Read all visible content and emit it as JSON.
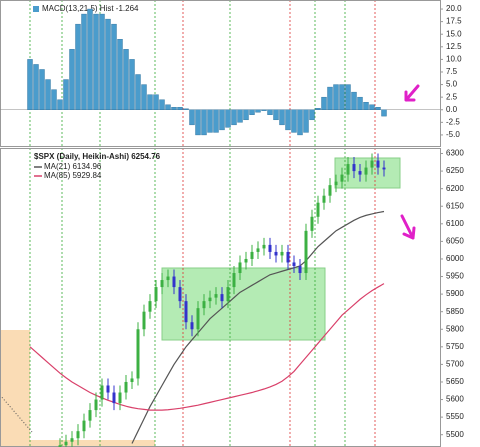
{
  "chart_data": [
    {
      "type": "bar",
      "title": "MACD(13,21,5) Hist -1.264",
      "color": "#4a9ccc",
      "values": [
        10,
        9,
        8,
        6,
        4,
        2,
        6,
        12,
        17,
        19,
        20,
        19,
        19,
        18,
        17,
        14,
        12,
        10,
        7,
        5,
        3,
        3,
        2,
        1,
        0.5,
        0.5,
        0.2,
        -3,
        -5,
        -5,
        -4.5,
        -4.5,
        -4,
        -3.5,
        -3,
        -2.5,
        -2,
        -1,
        -0.5,
        -0.2,
        -1,
        -2,
        -3,
        -4,
        -4.5,
        -5,
        -4.5,
        -2,
        0.3,
        2.5,
        4.5,
        5,
        5,
        5,
        3.5,
        2.5,
        1.5,
        1,
        0.5,
        -1.264
      ],
      "ylim": [
        -7,
        21
      ],
      "yticks": [
        {
          "value": 20,
          "label": "20.0"
        },
        {
          "value": 17.5,
          "label": "17.5"
        },
        {
          "value": 15,
          "label": "15.0"
        },
        {
          "value": 12.5,
          "label": "12.5"
        },
        {
          "value": 10,
          "label": "10.0"
        },
        {
          "value": 7.5,
          "label": "7.5"
        },
        {
          "value": 5,
          "label": "5.0"
        },
        {
          "value": 2.5,
          "label": "2.5"
        },
        {
          "value": 0,
          "label": "0.0"
        },
        {
          "value": -2.5,
          "label": "-2.5"
        },
        {
          "value": -5,
          "label": "-5.0"
        }
      ]
    },
    {
      "type": "candlestick",
      "title": "$SPX (Daily, Heikin-Ashi) 6254.76",
      "up_color": "#3cb043",
      "down_color": "#3333cc",
      "open": [
        null,
        null,
        null,
        null,
        null,
        5455,
        5470,
        5480,
        5490,
        5510,
        5540,
        5570,
        5600,
        5640,
        5620,
        5590,
        5620,
        5650,
        5660,
        5800,
        5850,
        5880,
        5920,
        5940,
        5950,
        5920,
        5880,
        5820,
        5800,
        5860,
        5880,
        5890,
        5900,
        5880,
        5920,
        5960,
        5990,
        6000,
        6020,
        6030,
        6040,
        6020,
        6010,
        6020,
        5990,
        5980,
        5960,
        6080,
        6120,
        6160,
        6180,
        6210,
        6220,
        6240,
        6270,
        6250,
        6240,
        6260,
        6280,
        6260
      ],
      "high": [
        null,
        null,
        null,
        null,
        null,
        5490,
        5500,
        5510,
        5530,
        5560,
        5590,
        5620,
        5660,
        5660,
        5640,
        5640,
        5670,
        5680,
        5820,
        5870,
        5900,
        5940,
        5960,
        5970,
        5970,
        5940,
        5900,
        5840,
        5880,
        5900,
        5910,
        5920,
        5920,
        5940,
        5980,
        6010,
        6020,
        6040,
        6050,
        6060,
        6060,
        6040,
        6040,
        6040,
        6010,
        6000,
        6100,
        6140,
        6180,
        6200,
        6230,
        6240,
        6260,
        6290,
        6290,
        6270,
        6280,
        6300,
        6300,
        6280
      ],
      "low": [
        null,
        null,
        null,
        null,
        null,
        5435,
        5450,
        5460,
        5470,
        5490,
        5520,
        5550,
        5580,
        5600,
        5570,
        5570,
        5600,
        5630,
        5640,
        5780,
        5830,
        5860,
        5900,
        5920,
        5900,
        5860,
        5800,
        5780,
        5780,
        5840,
        5860,
        5870,
        5860,
        5860,
        5900,
        5940,
        5970,
        5980,
        6000,
        6010,
        6000,
        5990,
        5990,
        5970,
        5960,
        5940,
        5940,
        6060,
        6100,
        6140,
        6160,
        6190,
        6200,
        6220,
        6230,
        6220,
        6220,
        6240,
        6240,
        6234.76
      ],
      "close": [
        null,
        null,
        null,
        null,
        null,
        5470,
        5480,
        5490,
        5510,
        5540,
        5570,
        5600,
        5640,
        5620,
        5590,
        5620,
        5650,
        5660,
        5800,
        5850,
        5880,
        5920,
        5940,
        5950,
        5920,
        5880,
        5820,
        5800,
        5860,
        5880,
        5890,
        5900,
        5880,
        5920,
        5960,
        5990,
        6000,
        6020,
        6030,
        6040,
        6020,
        6010,
        6020,
        5990,
        5980,
        5960,
        6080,
        6120,
        6160,
        6180,
        6210,
        6220,
        6240,
        6270,
        6250,
        6240,
        6260,
        6280,
        6260,
        6254.76
      ],
      "series": [
        {
          "name": "MA(21) 6134.96",
          "color": "#555555",
          "values": [
            null,
            null,
            null,
            null,
            null,
            null,
            null,
            null,
            null,
            null,
            null,
            null,
            null,
            null,
            null,
            null,
            null,
            5475,
            5510,
            5545,
            5580,
            5610,
            5640,
            5670,
            5700,
            5725,
            5750,
            5770,
            5790,
            5810,
            5830,
            5845,
            5860,
            5875,
            5890,
            5905,
            5915,
            5925,
            5935,
            5945,
            5955,
            5960,
            5965,
            5970,
            5975,
            5980,
            5995,
            6015,
            6035,
            6050,
            6065,
            6080,
            6090,
            6100,
            6110,
            6118,
            6124,
            6128,
            6132,
            6134.96
          ]
        },
        {
          "name": "MA(85) 5929.84",
          "color": "#d9406a",
          "values": [
            5750,
            5735,
            5720,
            5705,
            5690,
            5675,
            5662,
            5650,
            5640,
            5630,
            5620,
            5612,
            5605,
            5598,
            5592,
            5586,
            5581,
            5577,
            5574,
            5572,
            5570,
            5570,
            5570,
            5571,
            5573,
            5575,
            5578,
            5581,
            5584,
            5588,
            5592,
            5596,
            5600,
            5604,
            5608,
            5612,
            5616,
            5620,
            5625,
            5630,
            5636,
            5643,
            5652,
            5665,
            5680,
            5700,
            5720,
            5740,
            5760,
            5780,
            5800,
            5820,
            5840,
            5855,
            5870,
            5885,
            5898,
            5910,
            5920,
            5929.84
          ]
        }
      ],
      "ylim": [
        5465,
        6310
      ],
      "yticks": [
        5500,
        5550,
        5600,
        5650,
        5700,
        5750,
        5800,
        5850,
        5900,
        5950,
        6000,
        6050,
        6100,
        6150,
        6200,
        6250,
        6300
      ]
    }
  ]
}
